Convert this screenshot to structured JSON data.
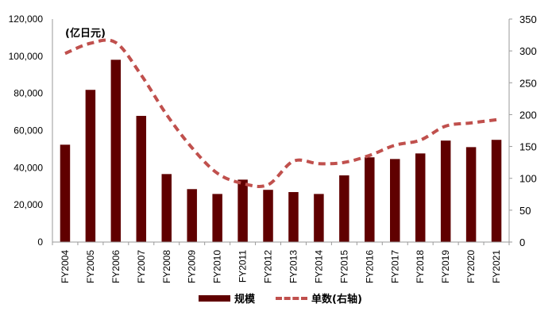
{
  "chart_data": {
    "type": "bar+line",
    "title": "",
    "unit_label": "(亿日元)",
    "categories": [
      "FY2004",
      "FY2005",
      "FY2006",
      "FY2007",
      "FY2008",
      "FY2009",
      "FY2010",
      "FY2011",
      "FY2012",
      "FY2013",
      "FY2014",
      "FY2015",
      "FY2016",
      "FY2017",
      "FY2018",
      "FY2019",
      "FY2020",
      "FY2021"
    ],
    "series": [
      {
        "name": "规模",
        "type": "bar",
        "axis": "left",
        "color": "#600000",
        "values": [
          52500,
          82000,
          98200,
          68000,
          36700,
          28600,
          26000,
          33700,
          28200,
          27000,
          26000,
          36000,
          45700,
          44800,
          47800,
          54700,
          51200,
          55100
        ]
      },
      {
        "name": "单数(右轴)",
        "type": "line",
        "style": "dashed",
        "axis": "right",
        "color": "#C0504D",
        "values": [
          296,
          312,
          313,
          262,
          200,
          148,
          108,
          92,
          90,
          127,
          123,
          125,
          136,
          152,
          160,
          182,
          187,
          192
        ]
      }
    ],
    "left_axis": {
      "min": 0,
      "max": 120000,
      "ticks": [
        "0",
        "20,000",
        "40,000",
        "60,000",
        "80,000",
        "100,000",
        "120,000"
      ]
    },
    "right_axis": {
      "min": 0,
      "max": 350,
      "ticks": [
        "0",
        "50",
        "100",
        "150",
        "200",
        "250",
        "300",
        "350"
      ]
    },
    "grid": false,
    "legend_position": "bottom"
  },
  "legend": {
    "bar_label": "规模",
    "line_label": "单数(右轴)"
  }
}
